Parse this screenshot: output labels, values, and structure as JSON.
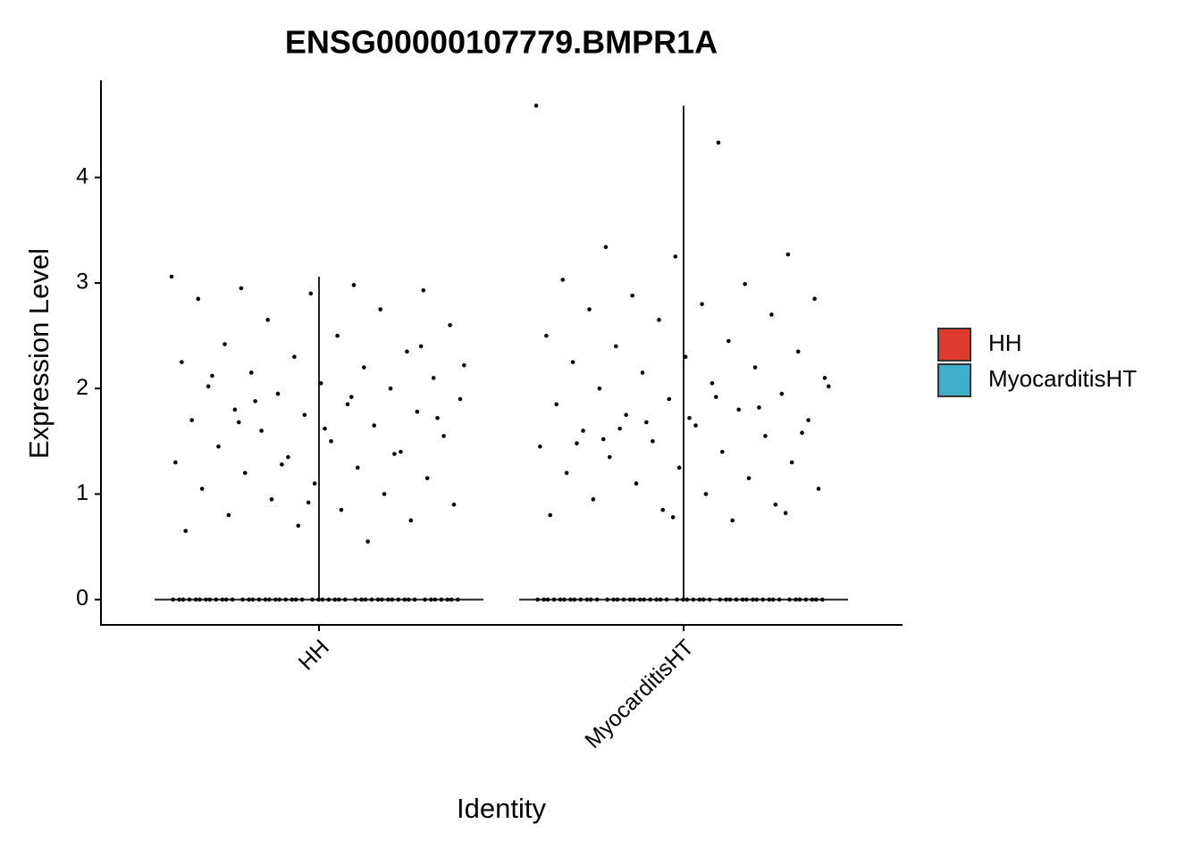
{
  "chart_data": {
    "type": "violin",
    "title": "ENSG00000107779.BMPR1A",
    "x_label": "Identity",
    "y_label": "Expression Level",
    "categories": [
      "HH",
      "MyocarditisHT"
    ],
    "ylim": [
      -0.24,
      4.92
    ],
    "yticks": [
      0,
      1,
      2,
      3,
      4
    ],
    "series": [
      {
        "name": "HH",
        "color": "#de3a2d",
        "values": [
          3.06,
          2.98,
          2.95,
          2.93,
          2.9,
          2.85,
          2.75,
          2.65,
          2.6,
          2.5,
          2.42,
          2.35,
          2.3,
          2.25,
          2.2,
          2.15,
          2.1,
          2.05,
          2.02,
          2.0,
          1.95,
          1.9,
          1.85,
          1.8,
          1.78,
          1.75,
          1.7,
          1.65,
          1.6,
          1.55,
          1.5,
          1.45,
          1.4,
          1.35,
          1.3,
          1.25,
          1.2,
          1.15,
          1.1,
          1.05,
          1.0,
          0.95,
          0.9,
          0.85,
          0.8,
          0.75,
          0.7,
          0.65,
          0.55,
          1.88,
          1.72,
          1.62,
          2.12,
          1.38,
          1.28,
          2.22,
          1.92,
          1.68,
          2.4,
          0.92,
          0,
          0,
          0,
          0,
          0,
          0,
          0,
          0,
          0,
          0,
          0,
          0,
          0,
          0,
          0,
          0,
          0,
          0,
          0,
          0,
          0,
          0,
          0,
          0,
          0,
          0,
          0,
          0,
          0,
          0,
          0,
          0,
          0,
          0,
          0,
          0,
          0,
          0,
          0,
          0,
          0,
          0,
          0,
          0,
          0,
          0,
          0,
          0,
          0,
          0
        ]
      },
      {
        "name": "MyocarditisHT",
        "color": "#3eaecb",
        "values": [
          4.68,
          4.33,
          3.34,
          3.27,
          3.25,
          3.03,
          2.99,
          2.88,
          2.85,
          2.8,
          2.75,
          2.7,
          2.65,
          2.5,
          2.45,
          2.4,
          2.35,
          2.3,
          2.25,
          2.2,
          2.15,
          2.1,
          2.05,
          2.0,
          1.95,
          1.9,
          1.85,
          1.8,
          1.75,
          1.7,
          1.65,
          1.6,
          1.55,
          1.5,
          1.45,
          1.4,
          1.35,
          1.3,
          1.25,
          1.2,
          1.15,
          1.1,
          1.05,
          1.0,
          0.95,
          0.9,
          0.85,
          0.8,
          0.75,
          1.62,
          1.58,
          1.72,
          1.48,
          1.82,
          1.68,
          2.02,
          1.92,
          1.52,
          0.82,
          0.78,
          0,
          0,
          0,
          0,
          0,
          0,
          0,
          0,
          0,
          0,
          0,
          0,
          0,
          0,
          0,
          0,
          0,
          0,
          0,
          0,
          0,
          0,
          0,
          0,
          0,
          0,
          0,
          0,
          0,
          0,
          0,
          0,
          0,
          0,
          0,
          0,
          0,
          0,
          0,
          0,
          0,
          0,
          0,
          0,
          0,
          0,
          0,
          0,
          0,
          0
        ]
      }
    ]
  }
}
